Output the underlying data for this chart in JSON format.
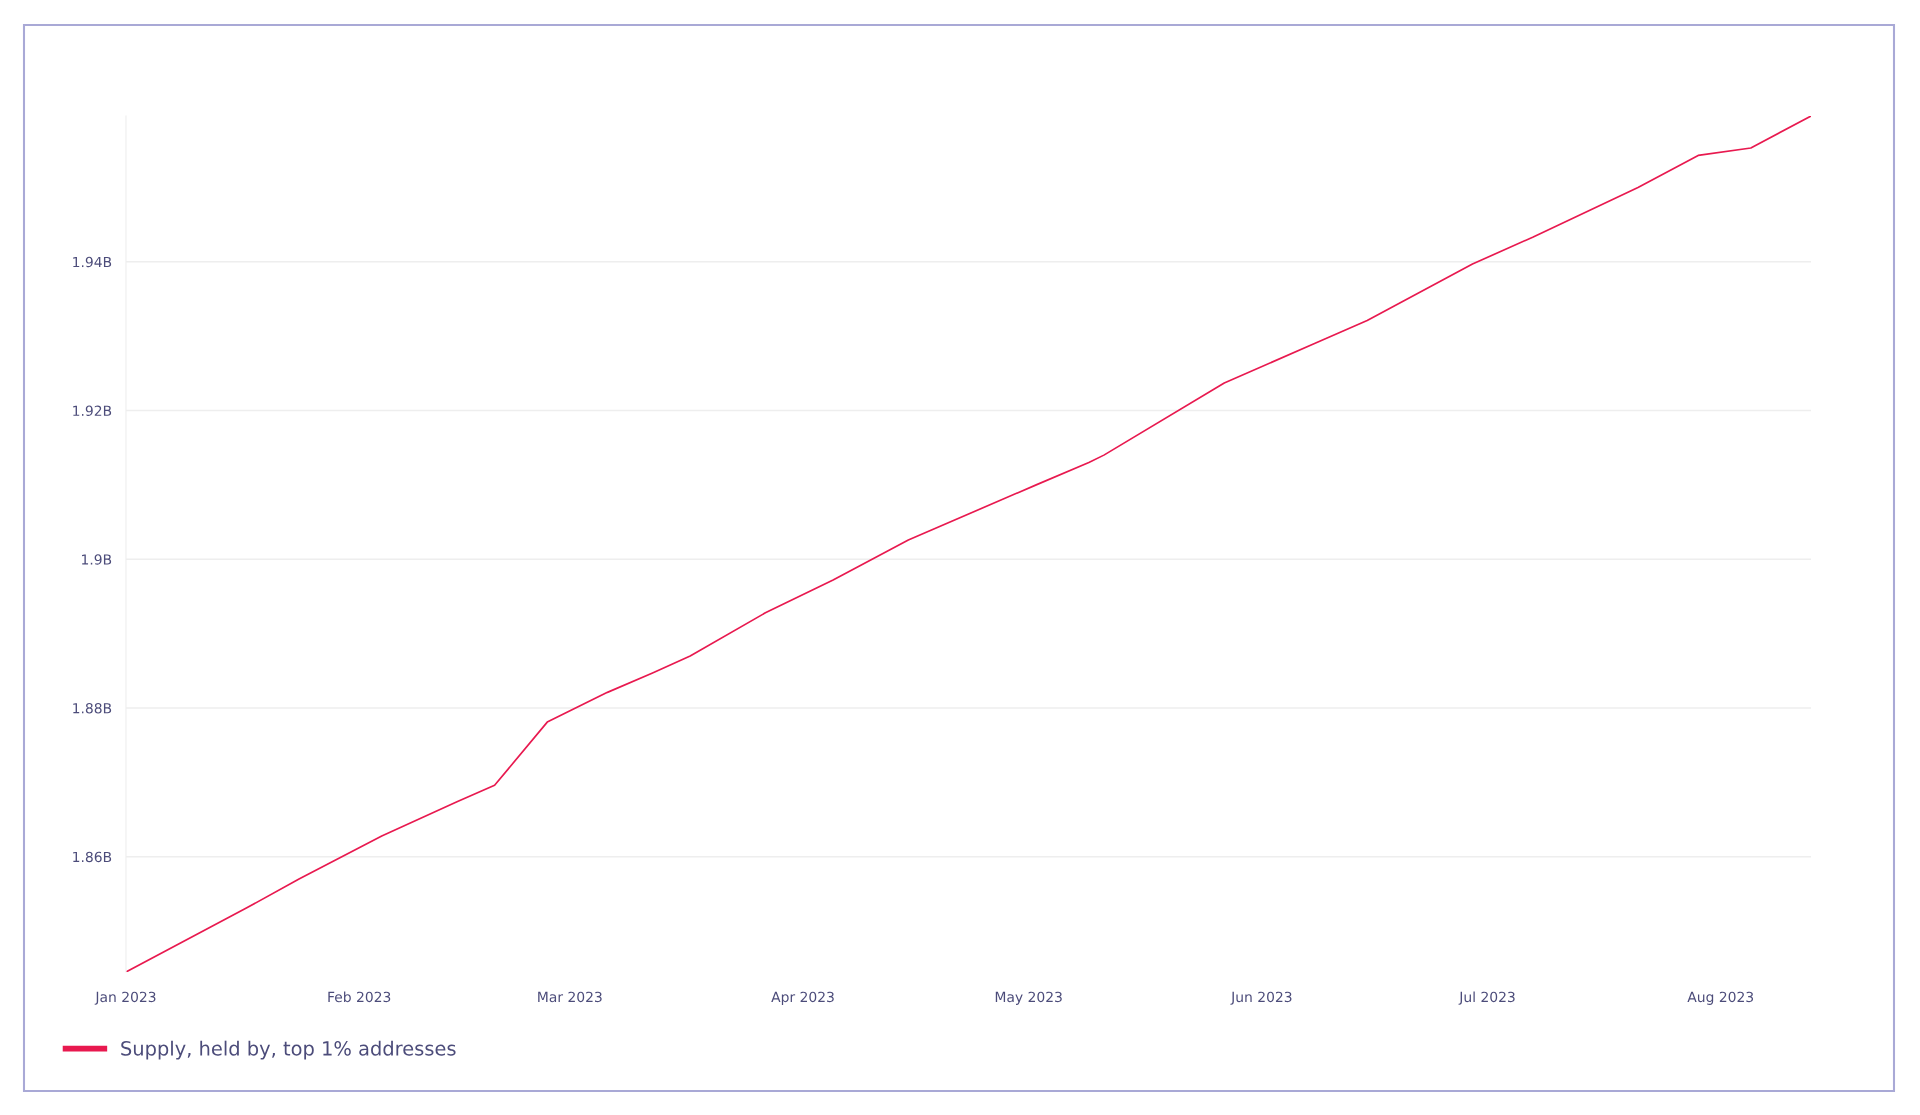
{
  "chart_data": {
    "type": "line",
    "legend": "bottom left",
    "grid": "y",
    "marker": "none",
    "line_style": "solid",
    "xlim": [
      "2023-01-01",
      "2023-08-13"
    ],
    "xticks": [
      {
        "value": "2023-01-01",
        "label": "Jan 2023"
      },
      {
        "value": "2023-02-01",
        "label": "Feb 2023"
      },
      {
        "value": "2023-03-01",
        "label": "Mar 2023"
      },
      {
        "value": "2023-04-01",
        "label": "Apr 2023"
      },
      {
        "value": "2023-05-01",
        "label": "May 2023"
      },
      {
        "value": "2023-06-01",
        "label": "Jun 2023"
      },
      {
        "value": "2023-07-01",
        "label": "Jul 2023"
      },
      {
        "value": "2023-08-01",
        "label": "Aug 2023"
      }
    ],
    "ylim": [
      1.8445,
      1.9596
    ],
    "yticks": [
      {
        "value": 1.86,
        "label": "1.86B"
      },
      {
        "value": 1.88,
        "label": "1.88B"
      },
      {
        "value": 1.9,
        "label": "1.9B"
      },
      {
        "value": 1.92,
        "label": "1.92B"
      },
      {
        "value": 1.94,
        "label": "1.94B"
      }
    ],
    "x": [
      "2023-01-01",
      "2023-01-17",
      "2023-01-24",
      "2023-02-04",
      "2023-02-14",
      "2023-02-19",
      "2023-02-26",
      "2023-03-06",
      "2023-03-12",
      "2023-03-17",
      "2023-03-27",
      "2023-04-05",
      "2023-04-15",
      "2023-05-02",
      "2023-05-09",
      "2023-05-11",
      "2023-05-27",
      "2023-06-08",
      "2023-06-15",
      "2023-06-29",
      "2023-07-07",
      "2023-07-21",
      "2023-07-29",
      "2023-08-05",
      "2023-08-13"
    ],
    "series": [
      {
        "name": "Supply, held by, top 1% addresses",
        "color": "#e8194f",
        "values": [
          1.8445,
          1.8531,
          1.857,
          1.8628,
          1.8674,
          1.8696,
          1.8781,
          1.8821,
          1.8847,
          1.887,
          1.8928,
          1.8972,
          1.9026,
          1.91,
          1.913,
          1.914,
          1.9237,
          1.929,
          1.9321,
          1.9397,
          1.9433,
          1.95,
          1.9543,
          1.9553,
          1.9596
        ]
      }
    ]
  }
}
